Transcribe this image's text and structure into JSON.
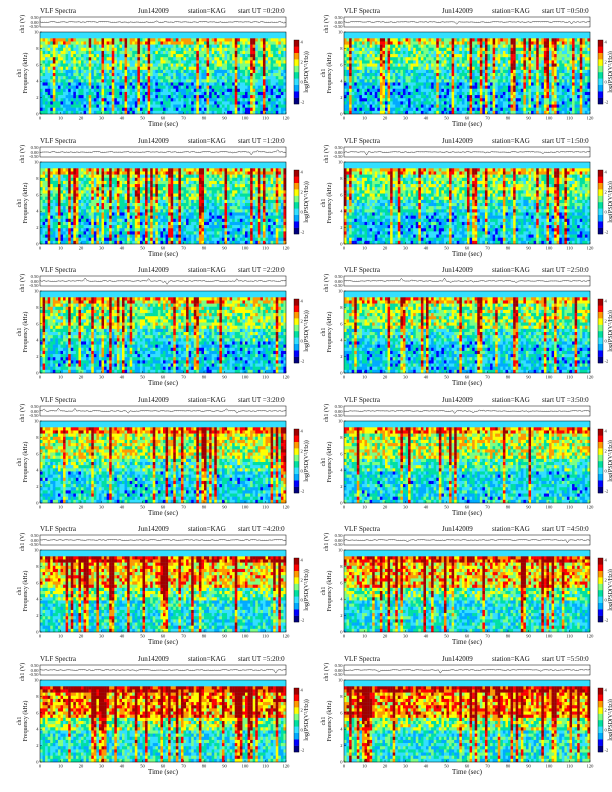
{
  "chart_data": {
    "type": "heatmap",
    "header_title": "VLF Spectra",
    "date": "Jun142009",
    "station": "station=KAG",
    "start_prefix": "start UT =",
    "xlabel": "Time (sec)",
    "ylabel_top": "ch1 (V)",
    "ylabel_spec_ch1_line1": "ch1",
    "ylabel_spec_line2": "Frequency (kHz)",
    "colorbar_label": "log(PSD(V²/Hz))",
    "x_ticks": [
      "0",
      "10",
      "20",
      "30",
      "40",
      "50",
      "60",
      "70",
      "80",
      "90",
      "100",
      "110",
      "120"
    ],
    "xlim": [
      0,
      120
    ],
    "freq_ticks": [
      "0",
      "2",
      "4",
      "6",
      "8",
      "10"
    ],
    "ylim_freq": [
      0,
      10
    ],
    "voltage_ticks": [
      "0.50",
      "0.00",
      "-0.50"
    ],
    "ylim_voltage": [
      -0.5,
      0.5
    ],
    "colorbar_ticks": [
      "4",
      "2",
      "0",
      "-2"
    ],
    "panels": [
      {
        "start_ut": "0:20:0",
        "date_variant": "Jun142009",
        "intensity": 0.45
      },
      {
        "start_ut": "0:50:0",
        "date_variant": "Jun142009",
        "intensity": 0.45
      },
      {
        "start_ut": "1:20:0",
        "date_variant": "Jun142009",
        "intensity": 0.5
      },
      {
        "start_ut": "1:50:0",
        "date_variant": "Jun142009",
        "intensity": 0.5
      },
      {
        "start_ut": "2:20:0",
        "date_variant": "Jun142009",
        "intensity": 0.55
      },
      {
        "start_ut": "2:50:0",
        "date_variant": "Jun142009",
        "intensity": 0.55
      },
      {
        "start_ut": "3:20:0",
        "date_variant": "Jun142009",
        "intensity": 0.65
      },
      {
        "start_ut": "3:50:0",
        "date_variant": "Jun142009",
        "intensity": 0.65
      },
      {
        "start_ut": "4:20:0",
        "date_variant": "Jun142009",
        "intensity": 0.8
      },
      {
        "start_ut": "4:50:0",
        "date_variant": "Jun142009",
        "intensity": 0.8
      },
      {
        "start_ut": "5:20:0",
        "date_variant": "Jun142009",
        "intensity": 0.9
      },
      {
        "start_ut": "5:50:0",
        "date_variant": "Jun142009",
        "intensity": 0.9
      }
    ],
    "colormap": [
      "#00007f",
      "#0000ff",
      "#00aaff",
      "#33e0ff",
      "#00e0a0",
      "#7fff7f",
      "#ffff00",
      "#ff9900",
      "#ff0000",
      "#a00000"
    ]
  }
}
